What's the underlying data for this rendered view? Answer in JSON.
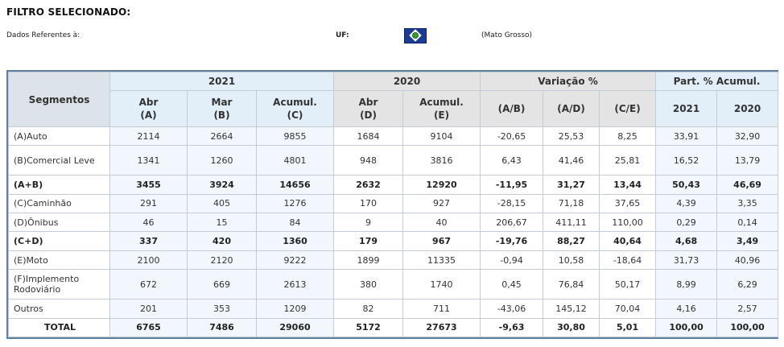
{
  "filter": {
    "title": "FILTRO SELECIONADO:",
    "dados_label": "Dados Referentes à:",
    "uf_label": "UF:",
    "state": "(Mato Grosso)",
    "flag_icon": "mato-grosso-flag"
  },
  "table": {
    "seg_header": "Segmentos",
    "groups": [
      "2021",
      "2020",
      "Variação %",
      "Part. % Acumul."
    ],
    "subheaders": [
      {
        "l1": "Abr",
        "l2": "(A)"
      },
      {
        "l1": "Mar",
        "l2": "(B)"
      },
      {
        "l1": "Acumul.",
        "l2": "(C)"
      },
      {
        "l1": "Abr",
        "l2": "(D)"
      },
      {
        "l1": "Acumul.",
        "l2": "(E)"
      },
      {
        "l1": "(A/B)",
        "l2": ""
      },
      {
        "l1": "(A/D)",
        "l2": ""
      },
      {
        "l1": "(C/E)",
        "l2": ""
      },
      {
        "l1": "2021",
        "l2": ""
      },
      {
        "l1": "2020",
        "l2": ""
      }
    ],
    "rows": [
      {
        "seg": "(A)Auto",
        "bold": false,
        "tall": false,
        "v": [
          "2114",
          "2664",
          "9855",
          "1684",
          "9104",
          "-20,65",
          "25,53",
          "8,25",
          "33,91",
          "32,90"
        ]
      },
      {
        "seg": "(B)Comercial Leve",
        "bold": false,
        "tall": true,
        "v": [
          "1341",
          "1260",
          "4801",
          "948",
          "3816",
          "6,43",
          "41,46",
          "25,81",
          "16,52",
          "13,79"
        ]
      },
      {
        "seg": "(A+B)",
        "bold": true,
        "tall": false,
        "v": [
          "3455",
          "3924",
          "14656",
          "2632",
          "12920",
          "-11,95",
          "31,27",
          "13,44",
          "50,43",
          "46,69"
        ]
      },
      {
        "seg": "(C)Caminhão",
        "bold": false,
        "tall": false,
        "v": [
          "291",
          "405",
          "1276",
          "170",
          "927",
          "-28,15",
          "71,18",
          "37,65",
          "4,39",
          "3,35"
        ]
      },
      {
        "seg": "(D)Ônibus",
        "bold": false,
        "tall": false,
        "v": [
          "46",
          "15",
          "84",
          "9",
          "40",
          "206,67",
          "411,11",
          "110,00",
          "0,29",
          "0,14"
        ]
      },
      {
        "seg": "(C+D)",
        "bold": true,
        "tall": false,
        "v": [
          "337",
          "420",
          "1360",
          "179",
          "967",
          "-19,76",
          "88,27",
          "40,64",
          "4,68",
          "3,49"
        ]
      },
      {
        "seg": "(E)Moto",
        "bold": false,
        "tall": false,
        "v": [
          "2100",
          "2120",
          "9222",
          "1899",
          "11335",
          "-0,94",
          "10,58",
          "-18,64",
          "31,73",
          "40,96"
        ]
      },
      {
        "seg": "(F)Implemento Rodoviário",
        "bold": false,
        "tall": true,
        "v": [
          "672",
          "669",
          "2613",
          "380",
          "1740",
          "0,45",
          "76,84",
          "50,17",
          "8,99",
          "6,29"
        ]
      },
      {
        "seg": "Outros",
        "bold": false,
        "tall": false,
        "v": [
          "201",
          "353",
          "1209",
          "82",
          "711",
          "-43,06",
          "145,12",
          "70,04",
          "4,16",
          "2,57"
        ]
      },
      {
        "seg": "TOTAL",
        "bold": true,
        "total": true,
        "tall": false,
        "v": [
          "6765",
          "7486",
          "29060",
          "5172",
          "27673",
          "-9,63",
          "30,80",
          "5,01",
          "100,00",
          "100,00"
        ]
      }
    ]
  }
}
